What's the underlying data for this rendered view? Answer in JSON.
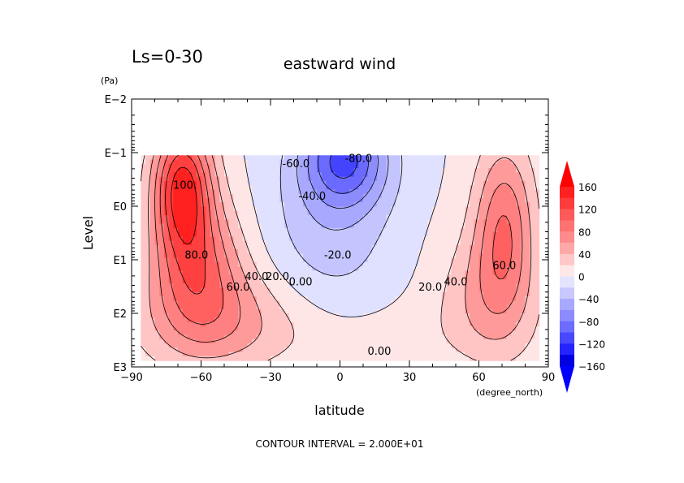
{
  "chart_data": {
    "type": "heatmap",
    "title": "eastward wind",
    "subtitle": "Ls=0-30",
    "xlabel": "latitude",
    "x_unit": "(degree_north)",
    "ylabel": "Level",
    "y_unit": "(Pa)",
    "xlim": [
      -90,
      90
    ],
    "x_ticks": [
      -90,
      -60,
      -30,
      0,
      30,
      60,
      90
    ],
    "x_ticklabels": [
      "−90",
      "−60",
      "−30",
      "0",
      "30",
      "60",
      "90"
    ],
    "y_scale": "log",
    "ylim_log10": [
      3,
      -2
    ],
    "y_ticks_log10": [
      -2,
      -1,
      0,
      1,
      2,
      3
    ],
    "y_ticklabels": [
      "E−2",
      "E−1",
      "E0",
      "E1",
      "E2",
      "E3"
    ],
    "contour_interval": 20,
    "footer": "CONTOUR INTERVAL = 2.000E+01",
    "colorbar": {
      "levels": [
        -160,
        -120,
        -80,
        -40,
        0,
        40,
        80,
        120,
        160
      ],
      "labels": [
        "160",
        "120",
        "80",
        "40",
        "0",
        "−40",
        "−80",
        "−120",
        "−160"
      ],
      "colors": [
        "#ff2020",
        "#ff4d4d",
        "#ff7070",
        "#ff9a9a",
        "#ffc4c4",
        "#ffe6e6",
        "#e0e0ff",
        "#c0c0ff",
        "#a0a0ff",
        "#8080ff",
        "#5c5cff",
        "#3030ff",
        "#1010e0",
        "#0000c0"
      ]
    },
    "contour_labels": [
      {
        "text": "100.",
        "lat": -67,
        "lev": -0.4
      },
      {
        "text": "80.0",
        "lat": -62,
        "lev": 0.9
      },
      {
        "text": "60.0",
        "lat": -44,
        "lev": 1.5
      },
      {
        "text": "40.0",
        "lat": -36,
        "lev": 1.3
      },
      {
        "text": "20.0",
        "lat": -27,
        "lev": 1.3
      },
      {
        "text": "0.00",
        "lat": -17,
        "lev": 1.4
      },
      {
        "text": "-60.0",
        "lat": -19,
        "lev": -0.8
      },
      {
        "text": "-80.0",
        "lat": 8,
        "lev": -0.9
      },
      {
        "text": "-40.0",
        "lat": -12,
        "lev": -0.2
      },
      {
        "text": "-20.0",
        "lat": -1,
        "lev": 0.9
      },
      {
        "text": "20.0",
        "lat": 39,
        "lev": 1.5
      },
      {
        "text": "40.0",
        "lat": 50,
        "lev": 1.4
      },
      {
        "text": "60.0",
        "lat": 71,
        "lev": 1.1
      },
      {
        "text": "0.00",
        "lat": 17,
        "lev": 2.7
      }
    ]
  }
}
